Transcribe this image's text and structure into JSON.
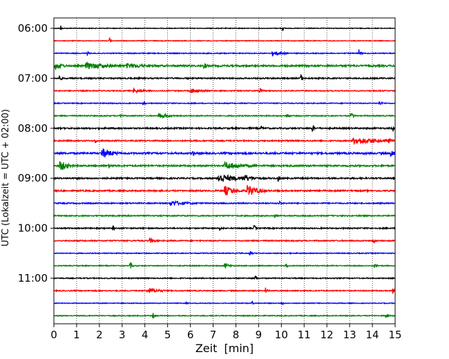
{
  "chart_data": {
    "type": "line",
    "subtype": "helicorder-seismogram",
    "title": "",
    "xlabel": "Zeit  [min]",
    "ylabel": "UTC (Lokalzeit = UTC + 02:00)",
    "xlim": [
      0,
      15
    ],
    "x_ticks": [
      0,
      1,
      2,
      3,
      4,
      5,
      6,
      7,
      8,
      9,
      10,
      11,
      12,
      13,
      14,
      15
    ],
    "x_grid": "dotted vertical at each minute",
    "row_interval_min": 15,
    "y_tick_labels": [
      "06:00",
      "07:00",
      "08:00",
      "09:00",
      "10:00",
      "11:00"
    ],
    "color_cycle": [
      "#000000",
      "#ff0000",
      "#0000ff",
      "#008000"
    ],
    "rows": [
      {
        "start": "06:00",
        "noise": 0.25,
        "events": [
          {
            "t": 0.3,
            "amp": 2.6,
            "dur": 0.05
          },
          {
            "t": 10.05,
            "amp": 2.2,
            "dur": 0.05
          }
        ]
      },
      {
        "start": "06:15",
        "noise": 0.25,
        "events": [
          {
            "t": 2.45,
            "amp": 2.8,
            "dur": 0.05
          }
        ]
      },
      {
        "start": "06:30",
        "noise": 0.3,
        "events": [
          {
            "t": 1.45,
            "amp": 2.2,
            "dur": 0.08
          },
          {
            "t": 9.6,
            "amp": 2.0,
            "dur": 0.45
          },
          {
            "t": 13.4,
            "amp": 3.2,
            "dur": 0.08
          }
        ]
      },
      {
        "start": "06:45",
        "noise": 0.6,
        "events": [
          {
            "t": 0.05,
            "amp": 3.4,
            "dur": 0.35
          },
          {
            "t": 1.4,
            "amp": 2.6,
            "dur": 1.2
          },
          {
            "t": 3.2,
            "amp": 2.0,
            "dur": 1.2
          },
          {
            "t": 6.6,
            "amp": 2.8,
            "dur": 0.15
          }
        ]
      },
      {
        "start": "07:00",
        "noise": 0.45,
        "events": [
          {
            "t": 0.25,
            "amp": 2.6,
            "dur": 0.1
          },
          {
            "t": 10.85,
            "amp": 3.4,
            "dur": 0.08
          }
        ]
      },
      {
        "start": "07:15",
        "noise": 0.35,
        "events": [
          {
            "t": 3.5,
            "amp": 1.8,
            "dur": 0.5
          },
          {
            "t": 6.0,
            "amp": 2.0,
            "dur": 0.6
          },
          {
            "t": 9.05,
            "amp": 3.6,
            "dur": 0.08
          }
        ]
      },
      {
        "start": "07:30",
        "noise": 0.3,
        "events": [
          {
            "t": 3.9,
            "amp": 2.2,
            "dur": 0.1
          },
          {
            "t": 14.3,
            "amp": 2.0,
            "dur": 0.15
          }
        ]
      },
      {
        "start": "07:45",
        "noise": 0.35,
        "events": [
          {
            "t": 2.9,
            "amp": 2.4,
            "dur": 0.08
          },
          {
            "t": 4.6,
            "amp": 2.0,
            "dur": 0.5
          },
          {
            "t": 10.25,
            "amp": 2.6,
            "dur": 0.1
          },
          {
            "t": 13.05,
            "amp": 3.2,
            "dur": 0.1
          }
        ]
      },
      {
        "start": "08:00",
        "noise": 0.5,
        "events": [
          {
            "t": 9.1,
            "amp": 2.4,
            "dur": 0.08
          },
          {
            "t": 11.35,
            "amp": 3.0,
            "dur": 0.1
          },
          {
            "t": 14.9,
            "amp": 2.6,
            "dur": 0.08
          }
        ]
      },
      {
        "start": "08:15",
        "noise": 0.45,
        "events": [
          {
            "t": 1.8,
            "amp": 2.2,
            "dur": 0.1
          },
          {
            "t": 13.15,
            "amp": 3.0,
            "dur": 1.2
          },
          {
            "t": 14.7,
            "amp": 2.0,
            "dur": 0.4
          }
        ]
      },
      {
        "start": "08:30",
        "noise": 0.6,
        "events": [
          {
            "t": 2.1,
            "amp": 4.0,
            "dur": 0.5
          },
          {
            "t": 6.1,
            "amp": 2.6,
            "dur": 0.1
          },
          {
            "t": 14.8,
            "amp": 3.0,
            "dur": 0.2
          }
        ]
      },
      {
        "start": "08:45",
        "noise": 0.55,
        "events": [
          {
            "t": 0.25,
            "amp": 4.2,
            "dur": 0.35
          },
          {
            "t": 2.4,
            "amp": 2.4,
            "dur": 0.1
          },
          {
            "t": 7.5,
            "amp": 2.8,
            "dur": 1.0
          }
        ]
      },
      {
        "start": "09:00",
        "noise": 0.5,
        "events": [
          {
            "t": 7.2,
            "amp": 3.8,
            "dur": 0.8
          },
          {
            "t": 8.3,
            "amp": 3.0,
            "dur": 0.5
          },
          {
            "t": 9.85,
            "amp": 3.0,
            "dur": 0.08
          }
        ]
      },
      {
        "start": "09:15",
        "noise": 0.5,
        "events": [
          {
            "t": 7.5,
            "amp": 3.8,
            "dur": 0.5
          },
          {
            "t": 8.5,
            "amp": 4.4,
            "dur": 0.5
          }
        ]
      },
      {
        "start": "09:30",
        "noise": 0.4,
        "events": [
          {
            "t": 5.1,
            "amp": 2.2,
            "dur": 0.8
          },
          {
            "t": 9.9,
            "amp": 2.0,
            "dur": 0.08
          }
        ]
      },
      {
        "start": "09:45",
        "noise": 0.4,
        "events": [
          {
            "t": 9.7,
            "amp": 2.0,
            "dur": 0.08
          }
        ]
      },
      {
        "start": "10:00",
        "noise": 0.4,
        "events": [
          {
            "t": 2.6,
            "amp": 2.4,
            "dur": 0.08
          },
          {
            "t": 7.3,
            "amp": 3.2,
            "dur": 0.08
          },
          {
            "t": 8.8,
            "amp": 3.0,
            "dur": 0.08
          }
        ]
      },
      {
        "start": "10:15",
        "noise": 0.4,
        "events": [
          {
            "t": 4.2,
            "amp": 2.2,
            "dur": 0.3
          },
          {
            "t": 14.05,
            "amp": 3.6,
            "dur": 0.08
          }
        ]
      },
      {
        "start": "10:30",
        "noise": 0.3,
        "events": [
          {
            "t": 8.6,
            "amp": 2.4,
            "dur": 0.1
          }
        ]
      },
      {
        "start": "10:45",
        "noise": 0.3,
        "events": [
          {
            "t": 3.35,
            "amp": 2.8,
            "dur": 0.1
          },
          {
            "t": 7.5,
            "amp": 1.8,
            "dur": 0.3
          },
          {
            "t": 10.2,
            "amp": 2.4,
            "dur": 0.08
          },
          {
            "t": 14.1,
            "amp": 2.2,
            "dur": 0.1
          }
        ]
      },
      {
        "start": "11:00",
        "noise": 0.35,
        "events": [
          {
            "t": 8.85,
            "amp": 2.8,
            "dur": 0.08
          }
        ]
      },
      {
        "start": "11:15",
        "noise": 0.35,
        "events": [
          {
            "t": 4.1,
            "amp": 2.2,
            "dur": 0.6
          },
          {
            "t": 9.3,
            "amp": 2.6,
            "dur": 0.08
          },
          {
            "t": 14.9,
            "amp": 3.0,
            "dur": 0.08
          }
        ]
      },
      {
        "start": "11:30",
        "noise": 0.25,
        "events": [
          {
            "t": 5.8,
            "amp": 2.0,
            "dur": 0.08
          },
          {
            "t": 8.7,
            "amp": 2.0,
            "dur": 0.08
          },
          {
            "t": 10.0,
            "amp": 2.0,
            "dur": 0.08
          }
        ]
      },
      {
        "start": "11:45",
        "noise": 0.3,
        "events": [
          {
            "t": 4.35,
            "amp": 2.4,
            "dur": 0.1
          },
          {
            "t": 14.6,
            "amp": 2.2,
            "dur": 0.1
          }
        ]
      }
    ]
  }
}
